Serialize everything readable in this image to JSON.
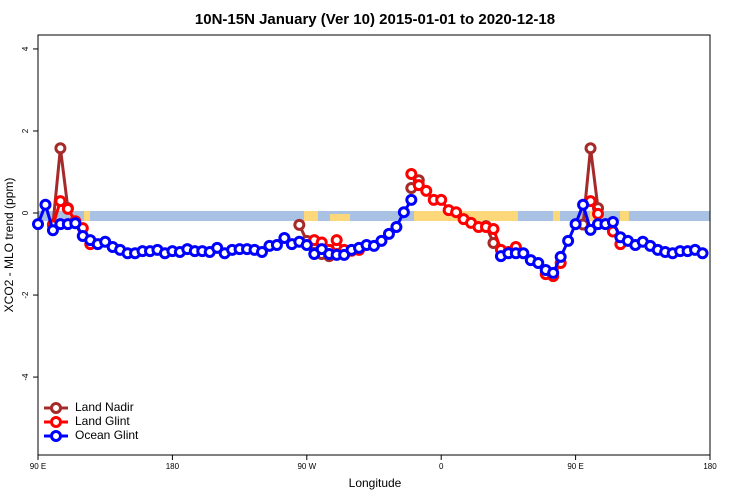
{
  "chart_data": {
    "type": "line",
    "title": "10N-15N January (Ver 10)   2015-01-01 to 2020-12-18",
    "xlabel": "Longitude",
    "ylabel": "XCO2 - MLO trend (ppm)",
    "x": [
      90,
      95,
      100,
      105,
      110,
      115,
      120,
      125,
      130,
      135,
      140,
      145,
      150,
      155,
      160,
      165,
      170,
      175,
      180,
      185,
      190,
      195,
      200,
      205,
      210,
      215,
      220,
      225,
      230,
      235,
      240,
      245,
      250,
      255,
      260,
      265,
      270,
      275,
      280,
      285,
      290,
      295,
      300,
      305,
      310,
      315,
      320,
      325,
      330,
      335,
      340,
      345,
      350,
      355,
      360,
      365,
      370,
      375,
      380,
      385,
      390,
      395,
      400,
      405,
      410,
      415,
      420,
      425,
      430,
      435,
      440,
      445,
      450,
      455,
      460,
      465,
      470,
      475,
      480,
      485,
      490,
      495,
      500,
      505,
      510,
      515,
      520,
      525,
      530,
      535,
      540
    ],
    "xlim": [
      90,
      540
    ],
    "xticks": [
      {
        "value": 90,
        "label": "90 E"
      },
      180,
      {
        "value": 270,
        "label": "90 W"
      },
      {
        "value": 360,
        "label": "0"
      },
      {
        "value": 450,
        "label": "90 E"
      },
      {
        "value": 540,
        "label": "180"
      }
    ],
    "ylim": [
      -5.9,
      4.34
    ],
    "yticks": [
      -4,
      -2,
      0,
      2,
      4
    ],
    "legend": "bottom-left",
    "series": [
      {
        "name": "Land Nadir",
        "color": "#a52a2a",
        "values": [
          null,
          null,
          -0.28,
          1.58,
          0.12,
          null,
          null,
          null,
          null,
          null,
          null,
          null,
          null,
          null,
          null,
          null,
          null,
          null,
          null,
          null,
          null,
          null,
          null,
          null,
          null,
          null,
          null,
          null,
          null,
          null,
          null,
          null,
          null,
          null,
          null,
          -0.29,
          -0.68,
          -0.76,
          -1.0,
          -1.05,
          -1.0,
          null,
          null,
          null,
          null,
          null,
          null,
          null,
          null,
          null,
          0.61,
          0.8,
          null,
          null,
          null,
          null,
          null,
          null,
          null,
          null,
          -0.32,
          -0.73,
          null,
          null,
          null,
          null,
          null,
          null,
          null,
          null,
          null,
          null,
          null,
          -0.28,
          1.58,
          0.12,
          null,
          null,
          null,
          null,
          null,
          null,
          null,
          null,
          null,
          null,
          null,
          null,
          null,
          null,
          null
        ]
      },
      {
        "name": "Land Glint",
        "color": "#ff0000",
        "values": [
          null,
          null,
          -0.3,
          0.29,
          0.1,
          -0.2,
          -0.37,
          -0.76,
          null,
          null,
          null,
          null,
          null,
          null,
          null,
          null,
          null,
          null,
          null,
          null,
          null,
          null,
          null,
          null,
          null,
          null,
          null,
          null,
          null,
          null,
          null,
          null,
          null,
          null,
          null,
          null,
          null,
          -0.66,
          -0.72,
          -0.9,
          -0.66,
          -0.9,
          -0.92,
          -0.9,
          null,
          null,
          null,
          null,
          null,
          null,
          0.95,
          0.68,
          0.54,
          0.32,
          0.32,
          0.07,
          0.02,
          -0.15,
          -0.24,
          -0.34,
          -0.34,
          -0.39,
          -0.9,
          -0.95,
          -0.83,
          null,
          null,
          null,
          -1.49,
          -1.54,
          -1.22,
          null,
          null,
          null,
          0.29,
          -0.02,
          null,
          -0.45,
          -0.76,
          null,
          null,
          null,
          null,
          null,
          null,
          null,
          null,
          null,
          null,
          null,
          null
        ]
      },
      {
        "name": "Ocean Glint",
        "color": "#0000ff",
        "values": [
          -0.27,
          0.2,
          -0.42,
          -0.27,
          -0.27,
          -0.25,
          -0.56,
          -0.66,
          -0.76,
          -0.7,
          -0.83,
          -0.9,
          -0.98,
          -0.98,
          -0.93,
          -0.93,
          -0.9,
          -0.98,
          -0.93,
          -0.95,
          -0.88,
          -0.93,
          -0.93,
          -0.95,
          -0.85,
          -0.98,
          -0.9,
          -0.88,
          -0.88,
          -0.9,
          -0.95,
          -0.8,
          -0.78,
          -0.61,
          -0.76,
          -0.7,
          -0.78,
          -1.0,
          -0.88,
          -1.0,
          -1.02,
          -1.02,
          -0.9,
          -0.85,
          -0.78,
          -0.8,
          -0.68,
          -0.51,
          -0.34,
          0.02,
          0.32,
          null,
          null,
          null,
          null,
          null,
          null,
          null,
          null,
          null,
          null,
          null,
          -1.05,
          -0.98,
          -0.98,
          -0.98,
          -1.15,
          -1.22,
          -1.39,
          -1.46,
          -1.07,
          -0.68,
          -0.27,
          0.2,
          -0.41,
          -0.27,
          -0.27,
          -0.22,
          -0.59,
          -0.68,
          -0.78,
          -0.7,
          -0.8,
          -0.9,
          -0.95,
          -0.98,
          -0.93,
          -0.93,
          -0.9,
          -0.98,
          null
        ]
      }
    ]
  }
}
